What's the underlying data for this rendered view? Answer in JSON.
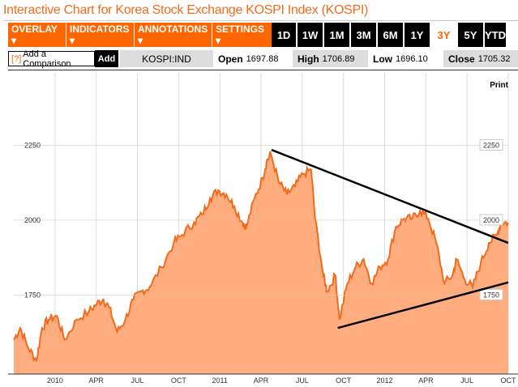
{
  "title": "Interactive Chart for Korea Stock Exchange KOSPI Index (KOSPI)",
  "toolbar": {
    "menus": [
      "OVERLAY ▾",
      "INDICATORS ▾",
      "ANNOTATIONS ▾",
      "SETTINGS ▾"
    ],
    "ranges": [
      "1D",
      "1W",
      "1M",
      "3M",
      "6M",
      "1Y",
      "3Y",
      "5Y",
      "YTD"
    ],
    "active_range": "3Y"
  },
  "comparison": {
    "help": "?",
    "placeholder": "Add a Comparison",
    "add_label": "Add"
  },
  "quote": {
    "symbol": "KOSPI:IND",
    "open_label": "Open",
    "open": "1697.88",
    "high_label": "High",
    "high": "1706.89",
    "low_label": "Low",
    "low": "1696.10",
    "close_label": "Close",
    "close": "1705.32"
  },
  "print_label": "Print",
  "colors": {
    "accent": "#ff6600",
    "fill": "#ffad7f",
    "line": "#f26b1d"
  },
  "chart_data": {
    "type": "area",
    "title": "",
    "xunit": "months since Jan 2010",
    "xticks": [
      {
        "t": 0,
        "label": "2010"
      },
      {
        "t": 3,
        "label": "APR"
      },
      {
        "t": 6,
        "label": "JUL"
      },
      {
        "t": 9,
        "label": "OCT"
      },
      {
        "t": 12,
        "label": "2011"
      },
      {
        "t": 15,
        "label": "APR"
      },
      {
        "t": 18,
        "label": "JUL"
      },
      {
        "t": 21,
        "label": "OCT"
      },
      {
        "t": 24,
        "label": "2012"
      },
      {
        "t": 27,
        "label": "APR"
      },
      {
        "t": 30,
        "label": "JUL"
      },
      {
        "t": 33,
        "label": "OCT"
      }
    ],
    "yticks": [
      {
        "v": 2250,
        "label": "2250"
      },
      {
        "v": 2000,
        "label": "2000"
      },
      {
        "v": 1750,
        "label": "1750"
      }
    ],
    "xlim": [
      -3,
      33
    ],
    "ylim": [
      1486,
      2492
    ],
    "series": [
      {
        "name": "KOSPI",
        "points": [
          [
            -3,
            1600
          ],
          [
            -2.53,
            1640
          ],
          [
            -1.94,
            1573
          ],
          [
            -1.35,
            1532
          ],
          [
            -0.94,
            1640
          ],
          [
            -0.47,
            1668
          ],
          [
            0.12,
            1681
          ],
          [
            0.71,
            1600
          ],
          [
            1.59,
            1668
          ],
          [
            2.47,
            1695
          ],
          [
            3.06,
            1722
          ],
          [
            3.53,
            1735
          ],
          [
            3.94,
            1708
          ],
          [
            4.53,
            1627
          ],
          [
            5.12,
            1668
          ],
          [
            5.71,
            1735
          ],
          [
            6.29,
            1762
          ],
          [
            6.88,
            1776
          ],
          [
            7.76,
            1843
          ],
          [
            8.65,
            1924
          ],
          [
            9.24,
            1951
          ],
          [
            10.12,
            1992
          ],
          [
            10.71,
            2019
          ],
          [
            11.29,
            2073
          ],
          [
            11.88,
            2100
          ],
          [
            12.47,
            2086
          ],
          [
            13.06,
            2046
          ],
          [
            13.65,
            1992
          ],
          [
            13.94,
            1978
          ],
          [
            14.53,
            2073
          ],
          [
            15.12,
            2141
          ],
          [
            15.41,
            2195
          ],
          [
            15.71,
            2222
          ],
          [
            16.29,
            2127
          ],
          [
            16.88,
            2086
          ],
          [
            17.47,
            2114
          ],
          [
            18.06,
            2154
          ],
          [
            18.65,
            2168
          ],
          [
            18.94,
            2005
          ],
          [
            19.53,
            1816
          ],
          [
            19.82,
            1762
          ],
          [
            20.41,
            1816
          ],
          [
            20.71,
            1668
          ],
          [
            21.29,
            1789
          ],
          [
            21.88,
            1843
          ],
          [
            22.47,
            1870
          ],
          [
            23.06,
            1789
          ],
          [
            23.65,
            1843
          ],
          [
            24.24,
            1870
          ],
          [
            24.82,
            1978
          ],
          [
            25.41,
            2005
          ],
          [
            26.0,
            2005
          ],
          [
            26.59,
            2032
          ],
          [
            27.18,
            2005
          ],
          [
            27.76,
            1924
          ],
          [
            28.35,
            1789
          ],
          [
            28.94,
            1816
          ],
          [
            29.24,
            1870
          ],
          [
            29.82,
            1803
          ],
          [
            30.41,
            1776
          ],
          [
            31.0,
            1857
          ],
          [
            31.59,
            1924
          ],
          [
            32.18,
            1951
          ],
          [
            32.47,
            1992
          ],
          [
            33,
            1992
          ]
        ]
      }
    ],
    "annotations": [
      {
        "type": "trendline",
        "from": [
          15.76,
          2235
        ],
        "to": [
          33,
          1924
        ]
      },
      {
        "type": "trendline",
        "from": [
          20.59,
          1640
        ],
        "to": [
          33,
          1792
        ]
      }
    ]
  }
}
